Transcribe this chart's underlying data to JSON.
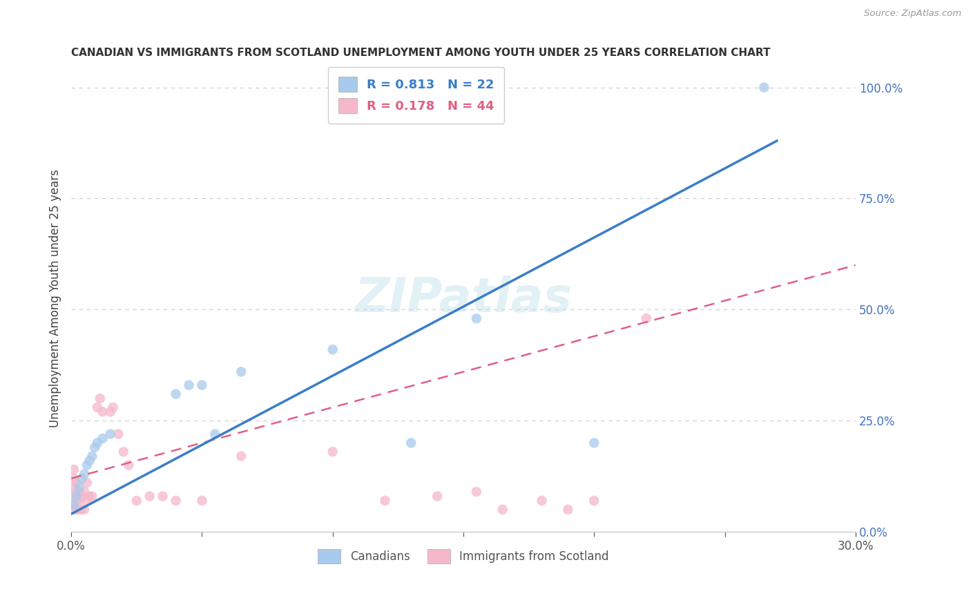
{
  "title": "CANADIAN VS IMMIGRANTS FROM SCOTLAND UNEMPLOYMENT AMONG YOUTH UNDER 25 YEARS CORRELATION CHART",
  "source": "Source: ZipAtlas.com",
  "ylabel": "Unemployment Among Youth under 25 years",
  "xlim": [
    0.0,
    0.3
  ],
  "ylim": [
    -0.02,
    1.1
  ],
  "plot_ylim": [
    0.0,
    1.05
  ],
  "xticks": [
    0.0,
    0.05,
    0.1,
    0.15,
    0.2,
    0.25,
    0.3
  ],
  "xtick_labels": [
    "0.0%",
    "",
    "",
    "",
    "",
    "",
    "30.0%"
  ],
  "ytick_labels_right": [
    "0.0%",
    "25.0%",
    "50.0%",
    "75.0%",
    "100.0%"
  ],
  "ytick_vals_right": [
    0.0,
    0.25,
    0.5,
    0.75,
    1.0
  ],
  "canadians_R": 0.813,
  "canadians_N": 22,
  "immigrants_R": 0.178,
  "immigrants_N": 44,
  "canadians_color": "#a8caec",
  "immigrants_color": "#f5b8cb",
  "canadians_line_color": "#3a7dc9",
  "immigrants_line_color": "#e06080",
  "background_color": "#ffffff",
  "grid_color": "#cccccc",
  "watermark": "ZIPatlas",
  "canadians_x": [
    0.001,
    0.002,
    0.003,
    0.004,
    0.005,
    0.006,
    0.007,
    0.008,
    0.009,
    0.01,
    0.012,
    0.015,
    0.04,
    0.045,
    0.05,
    0.055,
    0.065,
    0.1,
    0.13,
    0.155,
    0.2,
    0.265
  ],
  "canadians_y": [
    0.06,
    0.08,
    0.1,
    0.12,
    0.13,
    0.15,
    0.16,
    0.17,
    0.19,
    0.2,
    0.21,
    0.22,
    0.31,
    0.33,
    0.33,
    0.22,
    0.36,
    0.41,
    0.2,
    0.48,
    0.2,
    1.0
  ],
  "immigrants_x": [
    0.001,
    0.001,
    0.001,
    0.001,
    0.001,
    0.001,
    0.002,
    0.002,
    0.002,
    0.002,
    0.003,
    0.003,
    0.003,
    0.004,
    0.004,
    0.005,
    0.005,
    0.006,
    0.006,
    0.007,
    0.008,
    0.01,
    0.011,
    0.012,
    0.015,
    0.016,
    0.018,
    0.02,
    0.022,
    0.025,
    0.03,
    0.035,
    0.04,
    0.05,
    0.065,
    0.1,
    0.12,
    0.14,
    0.155,
    0.165,
    0.18,
    0.19,
    0.2,
    0.22
  ],
  "immigrants_y": [
    0.05,
    0.06,
    0.08,
    0.1,
    0.12,
    0.14,
    0.05,
    0.07,
    0.09,
    0.11,
    0.05,
    0.07,
    0.09,
    0.05,
    0.08,
    0.05,
    0.09,
    0.07,
    0.11,
    0.08,
    0.08,
    0.28,
    0.3,
    0.27,
    0.27,
    0.28,
    0.22,
    0.18,
    0.15,
    0.07,
    0.08,
    0.08,
    0.07,
    0.07,
    0.17,
    0.18,
    0.07,
    0.08,
    0.09,
    0.05,
    0.07,
    0.05,
    0.07,
    0.48
  ],
  "blue_line_x": [
    0.0,
    0.27
  ],
  "blue_line_y": [
    0.04,
    0.88
  ],
  "pink_line_x": [
    0.0,
    0.3
  ],
  "pink_line_y": [
    0.12,
    0.6
  ]
}
